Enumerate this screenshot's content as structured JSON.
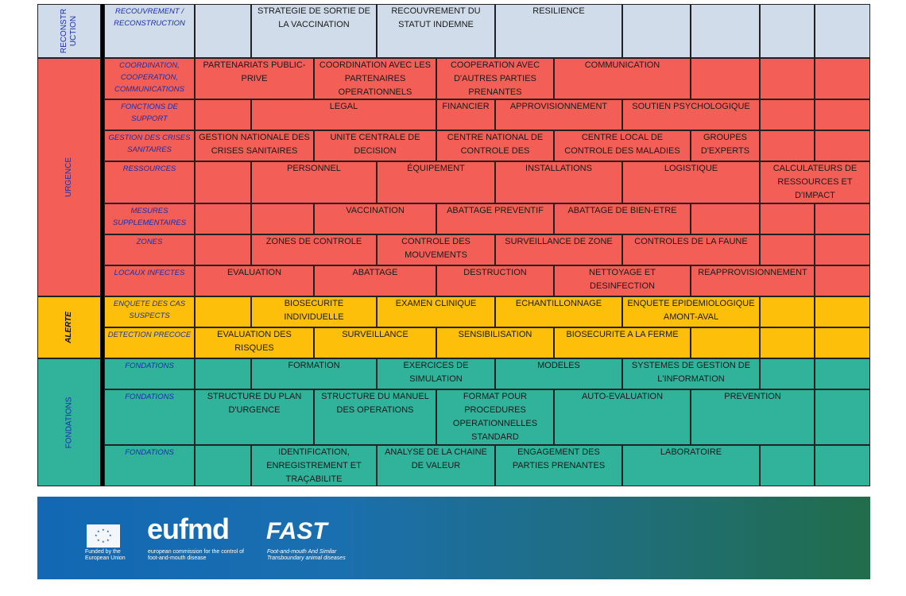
{
  "colors": {
    "reconstruction": "#d0dcea",
    "urgence": "#f35f57",
    "alerte": "#fdbf0a",
    "fondations": "#30b29b",
    "subtitle": "#1a2fa8",
    "banner_left": "#1268b3",
    "banner_right": "#216d4b"
  },
  "sections": {
    "reconstruction": "RECONSTR UCTION",
    "urgence": "URGENCE",
    "alerte": "ALERTE",
    "fondations": "FONDATIONS"
  },
  "rows": [
    {
      "subtitle": "RECOUVREMENT / RECONSTRUCTION",
      "cells": [
        "STRATEGIE DE SORTIE DE LA VACCINATION",
        "RECOUVREMENT DU STATUT INDEMNE",
        "RESILIENCE"
      ]
    },
    {
      "subtitle": "COORDINATION, COOPERATION, COMMUNICATIONS",
      "cells": [
        "PARTENARIATS PUBLIC-PRIVE",
        "COORDINATION AVEC LES PARTENAIRES OPERATIONNELS",
        "COOPERATION AVEC D'AUTRES PARTIES PRENANTES",
        "COMMUNICATION"
      ]
    },
    {
      "subtitle": "FONCTIONS DE SUPPORT",
      "cells": [
        "LEGAL",
        "FINANCIER",
        "APPROVISIONNEMENT",
        "SOUTIEN PSYCHOLOGIQUE"
      ]
    },
    {
      "subtitle": "GESTION DES CRISES SANITAIRES",
      "cells": [
        "GESTION NATIONALE DES CRISES SANITAIRES",
        "UNITE CENTRALE DE DECISION",
        "CENTRE NATIONAL DE CONTROLE DES MALADIES",
        "CENTRE LOCAL DE CONTROLE DES MALADIES",
        "GROUPES D'EXPERTS"
      ]
    },
    {
      "subtitle": "RESSOURCES",
      "cells": [
        "PERSONNEL",
        "ÉQUIPEMENT",
        "INSTALLATIONS",
        "LOGISTIQUE",
        "CALCULATEURS DE RESSOURCES ET D'IMPACT"
      ]
    },
    {
      "subtitle": "MESURES SUPPLEMENTAIRES",
      "cells": [
        "VACCINATION",
        "ABATTAGE PREVENTIF",
        "ABATTAGE DE BIEN-ETRE"
      ]
    },
    {
      "subtitle": "ZONES",
      "cells": [
        "ZONES DE CONTROLE",
        "CONTROLE DES MOUVEMENTS",
        "SURVEILLANCE DE ZONE",
        "CONTROLES DE LA FAUNE"
      ]
    },
    {
      "subtitle": "LOCAUX INFECTES",
      "cells": [
        "EVALUATION",
        "ABATTAGE",
        "DESTRUCTION",
        "NETTOYAGE ET DESINFECTION",
        "REAPPROVISIONNEMENT"
      ]
    },
    {
      "subtitle": "ENQUETE DES CAS SUSPECTS",
      "cells": [
        "BIOSECURITE INDIVIDUELLE",
        "EXAMEN CLINIQUE",
        "ECHANTILLONNAGE",
        "ENQUETE EPIDEMIOLOGIQUE AMONT-AVAL"
      ]
    },
    {
      "subtitle": "DETECTION PRECOCE",
      "cells": [
        "EVALUATION DES RISQUES",
        "SURVEILLANCE",
        "SENSIBILISATION",
        "BIOSECURITE A LA FERME"
      ]
    },
    {
      "subtitle": "FONDATIONS",
      "cells": [
        "FORMATION",
        "EXERCICES DE SIMULATION",
        "MODELES",
        "SYSTEMES DE GESTION DE L'INFORMATION"
      ]
    },
    {
      "subtitle": "FONDATIONS",
      "cells": [
        "STRUCTURE DU PLAN D'URGENCE",
        "STRUCTURE DU MANUEL DES OPERATIONS",
        "FORMAT POUR PROCEDURES OPERATIONNELLES STANDARD",
        "AUTO-EVALUATION",
        "PREVENTION"
      ]
    },
    {
      "subtitle": "FONDATIONS",
      "cells": [
        "IDENTIFICATION, ENREGISTREMENT ET TRAÇABILITE",
        "ANALYSE DE LA CHAINE DE VALEUR",
        "ENGAGEMENT DES PARTIES PRENANTES",
        "LABORATOIRE"
      ]
    }
  ],
  "banner": {
    "eu_text": "Funded by the European Union",
    "eufmd_logo": "eufmd",
    "eufmd_text": "european commission for the control of foot-and-mouth disease",
    "fast_logo": "FAST",
    "fast_text": "Foot-and-mouth And Similar Transboundary animal diseases"
  }
}
